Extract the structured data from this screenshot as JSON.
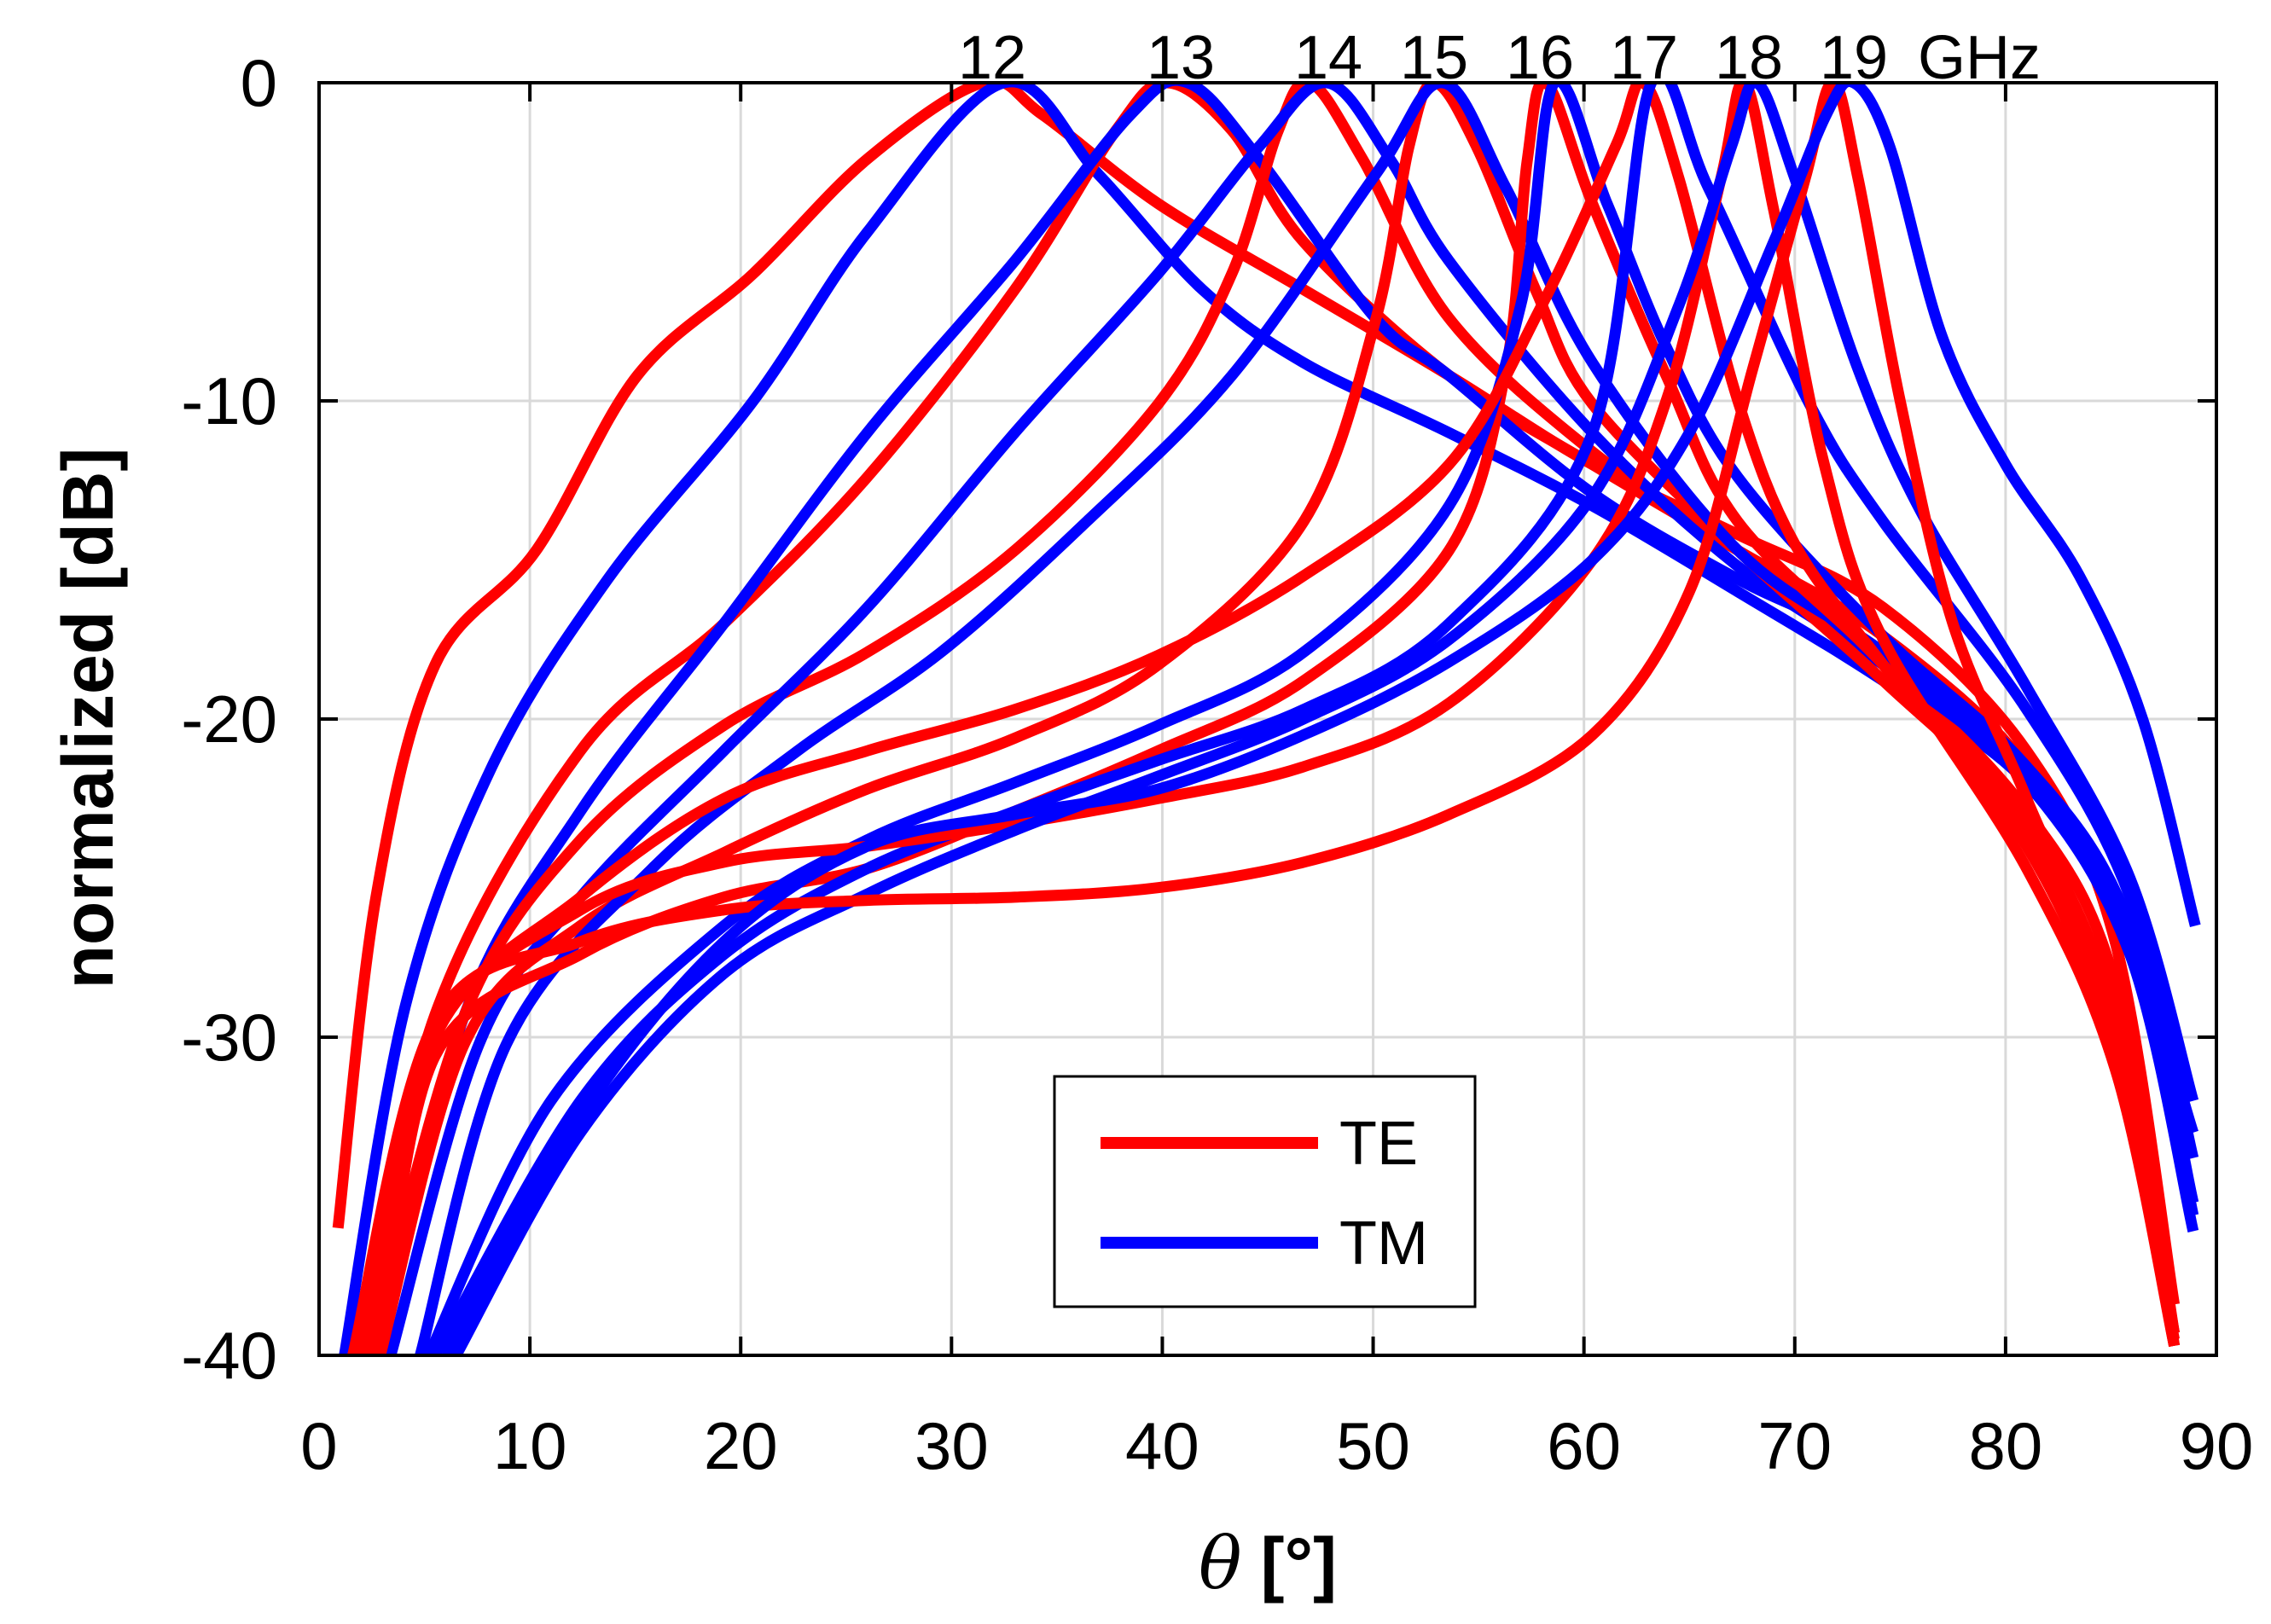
{
  "chart_data": {
    "type": "line",
    "title": "",
    "xlabel_symbol": "θ",
    "xlabel_unit": "[°]",
    "ylabel": "normalized [dB]",
    "xlim": [
      0,
      90
    ],
    "ylim": [
      -40,
      0
    ],
    "xticks": [
      0,
      10,
      20,
      30,
      40,
      50,
      60,
      70,
      80,
      90
    ],
    "yticks": [
      0,
      -10,
      -20,
      -30,
      -40
    ],
    "grid": true,
    "legend": {
      "placement": "bottom-center",
      "entries": [
        {
          "name": "TE",
          "color": "#ff0000"
        },
        {
          "name": "TM",
          "color": "#0000ff"
        }
      ]
    },
    "frequency_labels": [
      "12",
      "13",
      "14",
      "15",
      "16",
      "17",
      "18",
      "19"
    ],
    "frequency_unit": "GHz",
    "series": [
      {
        "name": "TE",
        "frequency": "12",
        "color": "#ff0000",
        "points": [
          [
            0.9,
            -36
          ],
          [
            2.7,
            -25.6
          ],
          [
            5.5,
            -18.3
          ],
          [
            10.3,
            -14.7
          ],
          [
            15.1,
            -9.2
          ],
          [
            20.6,
            -6
          ],
          [
            26,
            -2.4
          ],
          [
            31.5,
            0
          ],
          [
            34.3,
            -1
          ],
          [
            39.8,
            -3.8
          ],
          [
            46.7,
            -6.5
          ],
          [
            53.6,
            -9.2
          ],
          [
            60.4,
            -12
          ],
          [
            67.3,
            -14.2
          ],
          [
            74.2,
            -16.5
          ],
          [
            81,
            -21
          ],
          [
            85.2,
            -27
          ],
          [
            88,
            -38.4
          ]
        ]
      },
      {
        "name": "TM",
        "frequency": "12",
        "color": "#0000ff",
        "points": [
          [
            1.2,
            -40
          ],
          [
            4.1,
            -29
          ],
          [
            8.2,
            -21.5
          ],
          [
            13.7,
            -15.6
          ],
          [
            20.6,
            -10
          ],
          [
            26,
            -4.7
          ],
          [
            32.5,
            0
          ],
          [
            37,
            -2.9
          ],
          [
            41.9,
            -6.5
          ],
          [
            46.7,
            -8.8
          ],
          [
            53.6,
            -11
          ],
          [
            60.4,
            -13.3
          ],
          [
            67.3,
            -16
          ],
          [
            74.2,
            -18.8
          ],
          [
            81,
            -22
          ],
          [
            85.9,
            -27
          ],
          [
            88.9,
            -33
          ]
        ]
      },
      {
        "name": "TE",
        "frequency": "13",
        "color": "#ff0000",
        "points": [
          [
            2,
            -40
          ],
          [
            5.5,
            -29.3
          ],
          [
            12.4,
            -21
          ],
          [
            19.2,
            -17
          ],
          [
            26,
            -12.4
          ],
          [
            33,
            -6.5
          ],
          [
            37.8,
            -1.5
          ],
          [
            40.2,
            0
          ],
          [
            43.3,
            -1.5
          ],
          [
            46.7,
            -5
          ],
          [
            53.6,
            -9.2
          ],
          [
            60.4,
            -12
          ],
          [
            67.3,
            -14.7
          ],
          [
            74.2,
            -17.4
          ],
          [
            81,
            -21.5
          ],
          [
            85.2,
            -27
          ],
          [
            88,
            -39.7
          ]
        ]
      },
      {
        "name": "TM",
        "frequency": "13",
        "color": "#0000ff",
        "points": [
          [
            2.9,
            -40
          ],
          [
            6.9,
            -29.3
          ],
          [
            12.4,
            -22.9
          ],
          [
            19.2,
            -17
          ],
          [
            26,
            -11
          ],
          [
            33,
            -5.6
          ],
          [
            38.5,
            -1
          ],
          [
            41.2,
            0
          ],
          [
            44.6,
            -2.4
          ],
          [
            50.1,
            -7.4
          ],
          [
            53.6,
            -9.2
          ],
          [
            60.4,
            -12.9
          ],
          [
            67.3,
            -15.6
          ],
          [
            74.2,
            -17.9
          ],
          [
            81,
            -22
          ],
          [
            85.9,
            -27
          ],
          [
            88.9,
            -35.2
          ]
        ]
      },
      {
        "name": "TE",
        "frequency": "14",
        "color": "#ff0000",
        "points": [
          [
            2.4,
            -40
          ],
          [
            6.9,
            -29.3
          ],
          [
            12.4,
            -23.8
          ],
          [
            19.2,
            -20.2
          ],
          [
            26,
            -17.9
          ],
          [
            33,
            -14.7
          ],
          [
            39.8,
            -10.1
          ],
          [
            43.3,
            -6
          ],
          [
            45.5,
            -1.5
          ],
          [
            47,
            0
          ],
          [
            49.5,
            -2.4
          ],
          [
            53.6,
            -7.4
          ],
          [
            60.4,
            -11.6
          ],
          [
            67.3,
            -14.7
          ],
          [
            74.2,
            -18.3
          ],
          [
            81,
            -22.9
          ],
          [
            85.2,
            -28.3
          ],
          [
            88,
            -39.3
          ]
        ]
      },
      {
        "name": "TM",
        "frequency": "14",
        "color": "#0000ff",
        "points": [
          [
            3.4,
            -40
          ],
          [
            7.6,
            -30.2
          ],
          [
            12.4,
            -25.6
          ],
          [
            19.2,
            -21
          ],
          [
            26,
            -16.5
          ],
          [
            33,
            -11
          ],
          [
            39.8,
            -6
          ],
          [
            44.6,
            -2
          ],
          [
            47.8,
            0
          ],
          [
            50.8,
            -2.4
          ],
          [
            53.6,
            -5.6
          ],
          [
            60.4,
            -11
          ],
          [
            67.3,
            -15.2
          ],
          [
            74.2,
            -18.3
          ],
          [
            81,
            -22
          ],
          [
            85.9,
            -27.4
          ],
          [
            88.9,
            -36.1
          ]
        ]
      },
      {
        "name": "TE",
        "frequency": "15",
        "color": "#ff0000",
        "points": [
          [
            2.9,
            -40
          ],
          [
            6.9,
            -30.2
          ],
          [
            12.4,
            -26.5
          ],
          [
            19.2,
            -24.2
          ],
          [
            26,
            -22.2
          ],
          [
            33,
            -20.6
          ],
          [
            39.8,
            -18.3
          ],
          [
            46.7,
            -13.8
          ],
          [
            50.1,
            -7.5
          ],
          [
            51.7,
            -2
          ],
          [
            52.9,
            0
          ],
          [
            54.9,
            -2
          ],
          [
            57.7,
            -6.5
          ],
          [
            60.4,
            -10.1
          ],
          [
            67.3,
            -14.7
          ],
          [
            74.2,
            -18.8
          ],
          [
            81,
            -23.3
          ],
          [
            85.2,
            -29.3
          ],
          [
            88,
            -39.3
          ]
        ]
      },
      {
        "name": "TM",
        "frequency": "15",
        "color": "#0000ff",
        "points": [
          [
            4.8,
            -40
          ],
          [
            8.9,
            -30.2
          ],
          [
            15.8,
            -24.7
          ],
          [
            22.7,
            -21
          ],
          [
            29.5,
            -17.9
          ],
          [
            36.4,
            -13.8
          ],
          [
            43.3,
            -9.2
          ],
          [
            50.1,
            -2.9
          ],
          [
            53.3,
            0
          ],
          [
            56.3,
            -3.3
          ],
          [
            60.4,
            -8.8
          ],
          [
            67.3,
            -14.7
          ],
          [
            74.2,
            -17.9
          ],
          [
            81,
            -21.5
          ],
          [
            85.9,
            -26.5
          ],
          [
            88.9,
            -35.6
          ]
        ]
      },
      {
        "name": "TE",
        "frequency": "16",
        "color": "#ff0000",
        "points": [
          [
            2.9,
            -40
          ],
          [
            5.5,
            -30.6
          ],
          [
            12.4,
            -27.4
          ],
          [
            19.2,
            -25.6
          ],
          [
            26,
            -24.7
          ],
          [
            33,
            -22.9
          ],
          [
            39.8,
            -21
          ],
          [
            46.7,
            -18.8
          ],
          [
            53.6,
            -14.7
          ],
          [
            56.3,
            -9
          ],
          [
            57.3,
            -2.5
          ],
          [
            58.2,
            0
          ],
          [
            60.4,
            -3.8
          ],
          [
            63.9,
            -9.2
          ],
          [
            67.3,
            -13.8
          ],
          [
            74.2,
            -18.3
          ],
          [
            81,
            -23.8
          ],
          [
            85.2,
            -30.2
          ],
          [
            88,
            -39.5
          ]
        ]
      },
      {
        "name": "TM",
        "frequency": "16",
        "color": "#0000ff",
        "points": [
          [
            5.2,
            -40
          ],
          [
            11,
            -32
          ],
          [
            19.2,
            -26.5
          ],
          [
            26,
            -23.8
          ],
          [
            33,
            -22
          ],
          [
            39.8,
            -20.2
          ],
          [
            46.7,
            -17.9
          ],
          [
            53.6,
            -13.3
          ],
          [
            57,
            -7
          ],
          [
            58.6,
            0
          ],
          [
            61.1,
            -3.8
          ],
          [
            63.9,
            -8.3
          ],
          [
            67.3,
            -12.4
          ],
          [
            74.2,
            -17.4
          ],
          [
            81,
            -21.5
          ],
          [
            85.9,
            -26.5
          ],
          [
            88.9,
            -35.2
          ]
        ]
      },
      {
        "name": "TE",
        "frequency": "17",
        "color": "#ff0000",
        "points": [
          [
            2.2,
            -40
          ],
          [
            5.5,
            -30
          ],
          [
            12.4,
            -25.6
          ],
          [
            19.2,
            -22.5
          ],
          [
            26,
            -21
          ],
          [
            33,
            -19.7
          ],
          [
            39.8,
            -18
          ],
          [
            46.7,
            -15.5
          ],
          [
            53.6,
            -12
          ],
          [
            58,
            -7
          ],
          [
            61.5,
            -2
          ],
          [
            62.8,
            0
          ],
          [
            64.5,
            -3
          ],
          [
            67.3,
            -10
          ],
          [
            70,
            -14.5
          ],
          [
            74.2,
            -18.3
          ],
          [
            81,
            -24
          ],
          [
            85.2,
            -30.5
          ],
          [
            88,
            -39.7
          ]
        ]
      },
      {
        "name": "TM",
        "frequency": "17",
        "color": "#0000ff",
        "points": [
          [
            5.5,
            -40
          ],
          [
            12.4,
            -32
          ],
          [
            19.2,
            -27.4
          ],
          [
            26,
            -24.7
          ],
          [
            33,
            -22.9
          ],
          [
            39.8,
            -21.3
          ],
          [
            46.7,
            -19.7
          ],
          [
            53.6,
            -17
          ],
          [
            60.4,
            -11
          ],
          [
            63.2,
            0
          ],
          [
            65.9,
            -3.3
          ],
          [
            70.7,
            -10.1
          ],
          [
            74.2,
            -13.8
          ],
          [
            81,
            -19.7
          ],
          [
            85.9,
            -25.6
          ],
          [
            88.9,
            -33.8
          ]
        ]
      },
      {
        "name": "TE",
        "frequency": "18",
        "color": "#ff0000",
        "points": [
          [
            2.4,
            -40
          ],
          [
            5.5,
            -30
          ],
          [
            12.4,
            -26
          ],
          [
            19.2,
            -24.5
          ],
          [
            26,
            -24
          ],
          [
            33,
            -23.3
          ],
          [
            39.8,
            -22.5
          ],
          [
            46.7,
            -21.5
          ],
          [
            53.6,
            -19.5
          ],
          [
            60.4,
            -15
          ],
          [
            63.9,
            -10
          ],
          [
            66.5,
            -3
          ],
          [
            67.6,
            0
          ],
          [
            69,
            -4
          ],
          [
            71.4,
            -12
          ],
          [
            74.2,
            -17.5
          ],
          [
            81,
            -24.7
          ],
          [
            85.2,
            -31
          ],
          [
            88,
            -39.7
          ]
        ]
      },
      {
        "name": "TM",
        "frequency": "18",
        "color": "#0000ff",
        "points": [
          [
            6.5,
            -40
          ],
          [
            12.4,
            -33
          ],
          [
            19.2,
            -28
          ],
          [
            26,
            -25.5
          ],
          [
            33,
            -23.5
          ],
          [
            39.8,
            -21.8
          ],
          [
            46.7,
            -20
          ],
          [
            53.6,
            -17.5
          ],
          [
            60.4,
            -13
          ],
          [
            64.5,
            -7
          ],
          [
            67,
            -2
          ],
          [
            68.2,
            0
          ],
          [
            70,
            -3
          ],
          [
            73,
            -9
          ],
          [
            76,
            -13.5
          ],
          [
            81,
            -19
          ],
          [
            85.9,
            -25
          ],
          [
            88.9,
            -32
          ]
        ]
      },
      {
        "name": "TE",
        "frequency": "19",
        "color": "#ff0000",
        "points": [
          [
            1.6,
            -40
          ],
          [
            5.5,
            -29.5
          ],
          [
            12.4,
            -27
          ],
          [
            19.2,
            -26
          ],
          [
            26,
            -25.7
          ],
          [
            33,
            -25.6
          ],
          [
            39.8,
            -25.3
          ],
          [
            46.7,
            -24.5
          ],
          [
            53.6,
            -23
          ],
          [
            60.4,
            -20.5
          ],
          [
            65,
            -16
          ],
          [
            68,
            -9
          ],
          [
            70.5,
            -3
          ],
          [
            71.8,
            0
          ],
          [
            73,
            -3
          ],
          [
            75,
            -10
          ],
          [
            77.5,
            -17
          ],
          [
            81,
            -22.5
          ],
          [
            85.2,
            -29.5
          ],
          [
            88,
            -39.7
          ]
        ]
      },
      {
        "name": "TM",
        "frequency": "19",
        "color": "#0000ff",
        "points": [
          [
            6,
            -40
          ],
          [
            12.4,
            -32.5
          ],
          [
            19.2,
            -27
          ],
          [
            26,
            -24
          ],
          [
            33,
            -23
          ],
          [
            39.8,
            -22.2
          ],
          [
            46.7,
            -20.5
          ],
          [
            53.6,
            -18.2
          ],
          [
            60.4,
            -15
          ],
          [
            65,
            -11
          ],
          [
            69,
            -5
          ],
          [
            71.5,
            -1
          ],
          [
            72.8,
            0
          ],
          [
            74.5,
            -2
          ],
          [
            77,
            -8
          ],
          [
            80,
            -12
          ],
          [
            83.5,
            -15.5
          ],
          [
            86.5,
            -20
          ],
          [
            89,
            -26.5
          ]
        ]
      }
    ]
  }
}
